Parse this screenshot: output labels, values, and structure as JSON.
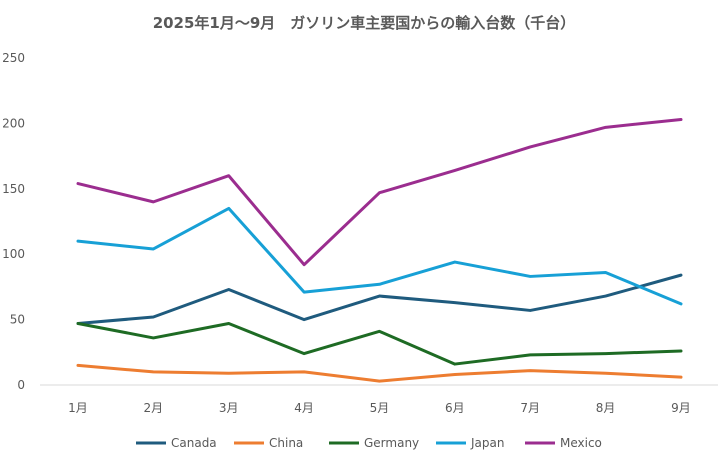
{
  "chart_data": {
    "type": "line",
    "title": "2025年1月〜9月　ガソリン車主要国からの輸入台数（千台）",
    "categories": [
      "1月",
      "2月",
      "3月",
      "4月",
      "5月",
      "6月",
      "7月",
      "8月",
      "9月"
    ],
    "ylim": [
      0,
      250
    ],
    "yticks": [
      "0",
      "50",
      "100",
      "150",
      "200",
      "250"
    ],
    "grid": false,
    "legend_position": "bottom",
    "series": [
      {
        "name": "Canada",
        "color": "#1f5b7e",
        "values": [
          47,
          52,
          73,
          50,
          68,
          63,
          57,
          68,
          84
        ]
      },
      {
        "name": "China",
        "color": "#ed7d31",
        "values": [
          15,
          10,
          9,
          10,
          3,
          8,
          11,
          9,
          6
        ]
      },
      {
        "name": "Germany",
        "color": "#1e6b24",
        "values": [
          47,
          36,
          47,
          24,
          41,
          16,
          23,
          24,
          26
        ]
      },
      {
        "name": "Japan",
        "color": "#17a0d6",
        "values": [
          110,
          104,
          135,
          71,
          77,
          94,
          83,
          86,
          62
        ]
      },
      {
        "name": "Mexico",
        "color": "#9b2d8f",
        "values": [
          154,
          140,
          160,
          92,
          147,
          164,
          182,
          197,
          203
        ]
      }
    ]
  }
}
